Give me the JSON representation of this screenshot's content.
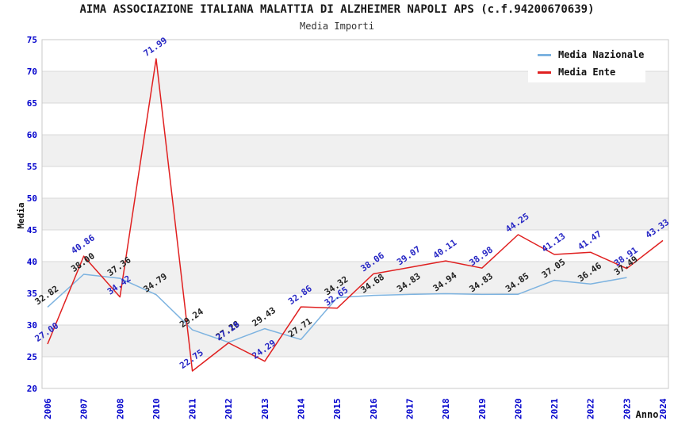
{
  "header": {
    "title": "AIMA ASSOCIAZIONE ITALIANA MALATTIA DI ALZHEIMER NAPOLI APS (c.f.94200670639)",
    "subtitle": "Media Importi"
  },
  "chart_data": {
    "type": "line",
    "title": "AIMA ASSOCIAZIONE ITALIANA MALATTIA DI ALZHEIMER NAPOLI APS (c.f.94200670639)",
    "subtitle": "Media Importi",
    "xlabel": "Anno",
    "ylabel": "Media",
    "ylim": [
      20,
      75
    ],
    "ytick_step": 5,
    "grid": true,
    "plot_style": "alternating horizontal gray/white bands every 5 units",
    "legend_position": "top-right",
    "categories": [
      "2006",
      "2007",
      "2008",
      "2010",
      "2011",
      "2012",
      "2013",
      "2014",
      "2015",
      "2016",
      "2017",
      "2018",
      "2019",
      "2020",
      "2021",
      "2022",
      "2023",
      "2024"
    ],
    "series": [
      {
        "name": "Media Nazionale",
        "color": "#7db3e0",
        "label_color": "#222222",
        "values": [
          32.82,
          38.0,
          37.36,
          34.79,
          29.24,
          27.28,
          29.43,
          27.71,
          34.32,
          34.68,
          34.83,
          34.94,
          34.83,
          34.85,
          37.05,
          36.46,
          37.49,
          null
        ],
        "labels": [
          "32.82",
          "38.00",
          "37.36",
          "34.79",
          "29.24",
          "27.28",
          "29.43",
          "27.71",
          "34.32",
          "34.68",
          "34.83",
          "34.94",
          "34.83",
          "34.85",
          "37.05",
          "36.46",
          "37.49",
          ""
        ]
      },
      {
        "name": "Media Ente",
        "color": "#e02020",
        "label_color": "#2626c4",
        "values": [
          27.0,
          40.86,
          34.42,
          71.99,
          22.75,
          27.19,
          24.29,
          32.86,
          32.65,
          38.06,
          39.07,
          40.11,
          38.98,
          44.25,
          41.13,
          41.47,
          38.91,
          43.33
        ],
        "labels": [
          "27.00",
          "40.86",
          "34.42",
          "71.99",
          "22.75",
          "27.19",
          "24.29",
          "32.86",
          "32.65",
          "38.06",
          "39.07",
          "40.11",
          "38.98",
          "44.25",
          "41.13",
          "41.47",
          "38.91",
          "43.33"
        ]
      }
    ],
    "colors": {
      "axis_tick_text": "#0000cc",
      "axis_label_text": "#111111",
      "grid_line": "#d8d8d8",
      "band_fill": "#f0f0f0",
      "plot_border": "#c9c9c9",
      "background": "#ffffff"
    }
  }
}
